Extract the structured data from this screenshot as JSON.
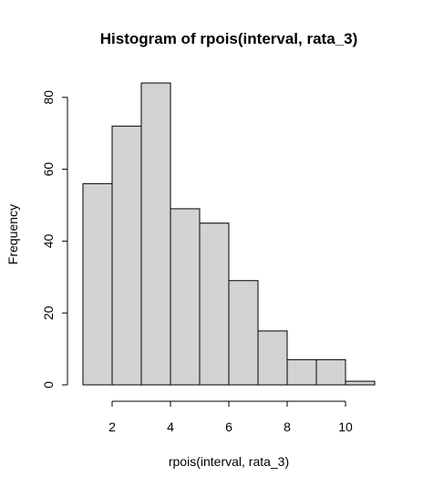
{
  "chart_data": {
    "type": "bar",
    "title": "Histogram of rpois(interval, rata_3)",
    "xlabel": "rpois(interval, rata_3)",
    "ylabel": "Frequency",
    "bins": [
      {
        "from": 1,
        "to": 2,
        "count": 56
      },
      {
        "from": 2,
        "to": 3,
        "count": 72
      },
      {
        "from": 3,
        "to": 4,
        "count": 84
      },
      {
        "from": 4,
        "to": 5,
        "count": 49
      },
      {
        "from": 5,
        "to": 6,
        "count": 45
      },
      {
        "from": 6,
        "to": 7,
        "count": 29
      },
      {
        "from": 7,
        "to": 8,
        "count": 15
      },
      {
        "from": 8,
        "to": 9,
        "count": 7
      },
      {
        "from": 9,
        "to": 10,
        "count": 7
      },
      {
        "from": 10,
        "to": 11,
        "count": 1
      }
    ],
    "xlim": [
      1,
      11
    ],
    "ylim": [
      0,
      84
    ],
    "x_ticks": [
      "2",
      "4",
      "6",
      "8",
      "10"
    ],
    "y_ticks": [
      "0",
      "20",
      "40",
      "60",
      "80"
    ],
    "grid": false,
    "bar_fill": "#d3d3d3",
    "bar_stroke": "#000000"
  }
}
